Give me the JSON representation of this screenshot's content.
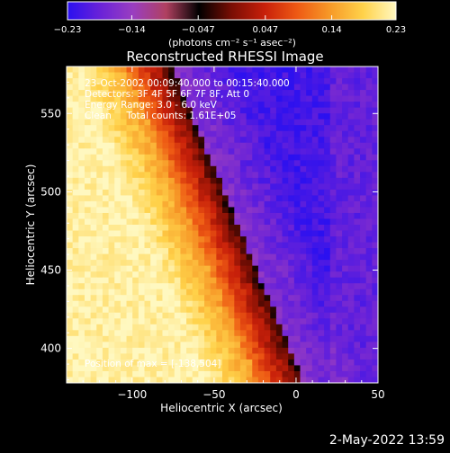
{
  "chart_data": {
    "type": "heatmap",
    "title": "Reconstructed RHESSI Image",
    "xlabel": "Heliocentric X (arcsec)",
    "ylabel": "Heliocentric Y (arcsec)",
    "xlim": [
      -140,
      50
    ],
    "ylim": [
      378,
      580
    ],
    "xticks": [
      -100,
      -50,
      0,
      50
    ],
    "xtick_labels": [
      "−100",
      "−50",
      "0",
      "50"
    ],
    "yticks": [
      400,
      450,
      500,
      550
    ],
    "ytick_labels": [
      "400",
      "450",
      "500",
      "550"
    ],
    "colorbar": {
      "range": [
        -0.23,
        0.23
      ],
      "ticks": [
        -0.23,
        -0.14,
        -0.047,
        0.047,
        0.14,
        0.23
      ],
      "tick_labels": [
        "−0.23",
        "−0.14",
        "−0.047",
        "0.047",
        "0.14",
        "0.23"
      ],
      "units": "(photons cm⁻² s⁻¹ asec⁻²)"
    },
    "colors": [
      "#2a10f0",
      "#6a22d8",
      "#9a3ec0",
      "#b04060",
      "#000000",
      "#7a0e04",
      "#c8200a",
      "#ee5a14",
      "#f79a28",
      "#ffd24a",
      "#fff8c0"
    ],
    "grid": false,
    "annotations": [
      "23-Oct-2002 00:09:40.000 to 00:15:40.000",
      "Detectors: 3F 4F 5F 6F 7F 8F, Att 0",
      "Energy Range: 3.0 - 6.0 keV",
      "Clean     Total counts: 1.61E+05",
      "Position of max = [-138,504]"
    ]
  },
  "footer": {
    "timestamp": "2-May-2022 13:59"
  }
}
